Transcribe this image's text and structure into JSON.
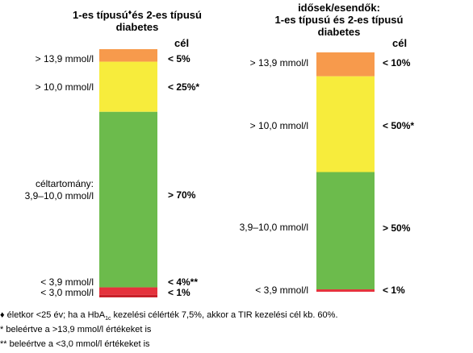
{
  "chart_data": [
    {
      "type": "bar",
      "title_parts": [
        "1-es típusú",
        "♦",
        "és 2-es típusú"
      ],
      "title_line2": "diabetes",
      "goal_header": "cél",
      "segments": [
        {
          "range_label": "> 13,9 mmol/l",
          "goal": "< 5%",
          "value": 5,
          "color": "#f79a4c"
        },
        {
          "range_label": "> 10,0 mmol/l",
          "goal": "< 25%*",
          "value": 20,
          "color": "#f7ec3c"
        },
        {
          "range_label_lines": [
            "céltartomány:",
            "3,9–10,0 mmol/l"
          ],
          "goal": "> 70%",
          "value": 70,
          "color": "#6cbb4c"
        },
        {
          "range_label": "< 3,9 mmol/l",
          "goal": "< 4%**",
          "value": 3,
          "color": "#e5323c"
        },
        {
          "range_label": "< 3,0 mmol/l",
          "goal": "< 1%",
          "value": 1,
          "color": "#c8202a"
        }
      ]
    },
    {
      "type": "bar",
      "title_lines": [
        "idősek/esendők:",
        "1-es típusú és 2-es típusú",
        "diabetes"
      ],
      "goal_header": "cél",
      "segments": [
        {
          "range_label": "> 13,9 mmol/l",
          "goal": "< 10%",
          "value": 10,
          "color": "#f79a4c"
        },
        {
          "range_label": "> 10,0 mmol/l",
          "goal": "< 50%*",
          "value": 40,
          "color": "#f7ec3c"
        },
        {
          "range_label": "3,9–10,0 mmol/l",
          "goal": "> 50%",
          "value": 49,
          "color": "#6cbb4c"
        },
        {
          "range_label": "< 3,9 mmol/l",
          "goal": "< 1%",
          "value": 1,
          "color": "#e5323c"
        }
      ]
    }
  ],
  "footnotes": {
    "f1": {
      "pre": "♦ életkor <25 év; ha a HbA",
      "sub": "1c",
      "post": " kezelési célérték 7,5%, akkor a TIR kezelési cél kb. 60%."
    },
    "f2": "* beleértve a >13,9 mmol/l értékeket is",
    "f3": "** beleértve a <3,0 mmol/l értékeket is"
  }
}
